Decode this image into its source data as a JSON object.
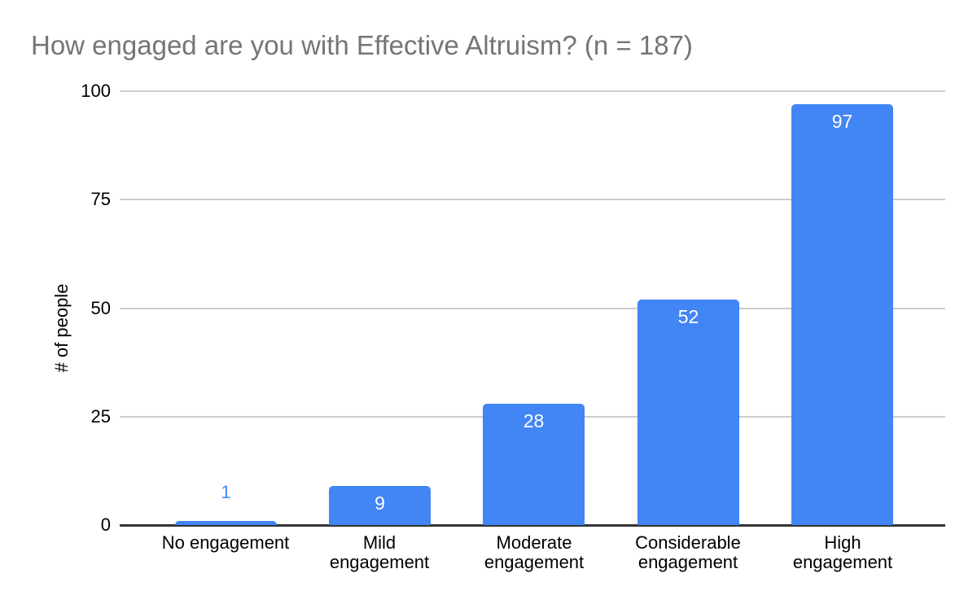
{
  "chart_data": {
    "type": "bar",
    "title": "How engaged are you with Effective Altruism? (n = 187)",
    "categories": [
      "No engagement",
      "Mild engagement",
      "Moderate engagement",
      "Considerable engagement",
      "High engagement"
    ],
    "category_label_lines": [
      [
        "No engagement"
      ],
      [
        "Mild",
        "engagement"
      ],
      [
        "Moderate",
        "engagement"
      ],
      [
        "Considerable",
        "engagement"
      ],
      [
        "High",
        "engagement"
      ]
    ],
    "values": [
      1,
      9,
      28,
      52,
      97
    ],
    "value_labels": [
      "1",
      "9",
      "28",
      "52",
      "97"
    ],
    "xlabel": "",
    "ylabel": "# of people",
    "ylim": [
      0,
      100
    ],
    "yticks": [
      0,
      25,
      50,
      75,
      100
    ],
    "grid": true,
    "legend_position": "none",
    "colors": {
      "bar": "#4285f4",
      "value_label_inside": "#ffffff",
      "value_label_outside": "#4285f4",
      "title": "#757575",
      "axis_text": "#000000",
      "gridline": "#cccccc",
      "axis_line": "#333333",
      "background": "#ffffff"
    }
  }
}
